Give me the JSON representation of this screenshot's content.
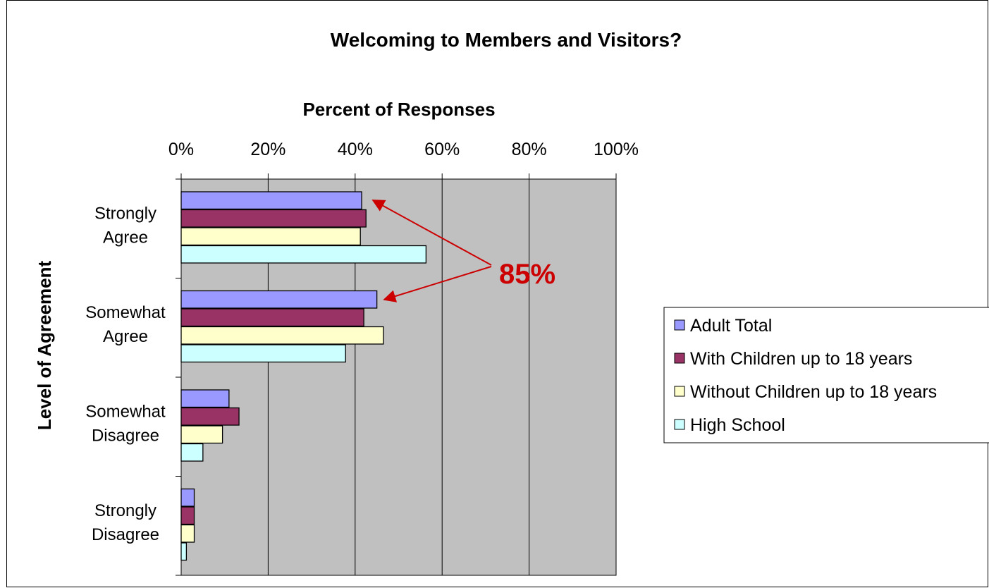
{
  "chart_data": {
    "type": "bar",
    "orientation": "horizontal",
    "title": "Welcoming to Members and Visitors?",
    "xlabel": "Percent of Responses",
    "ylabel": "Level of Agreement",
    "xlim": [
      0,
      100
    ],
    "x_ticks": [
      "0%",
      "20%",
      "40%",
      "60%",
      "80%",
      "100%"
    ],
    "categories": [
      [
        "Strongly",
        "Agree"
      ],
      [
        "Somewhat",
        "Agree"
      ],
      [
        "Somewhat",
        "Disagree"
      ],
      [
        "Strongly",
        "Disagree"
      ]
    ],
    "series": [
      {
        "name": "Adult Total",
        "color": "#9999ff",
        "values": [
          41.5,
          45,
          11,
          3
        ]
      },
      {
        "name": "With Children up to 18 years",
        "color": "#993366",
        "values": [
          42.5,
          42,
          13.3,
          3
        ]
      },
      {
        "name": "Without Children up to 18 years",
        "color": "#ffffcc",
        "values": [
          41.2,
          46.5,
          9.5,
          3
        ]
      },
      {
        "name": "High School",
        "color": "#ccffff",
        "values": [
          56.3,
          37.8,
          5,
          1.2
        ]
      }
    ],
    "annotation": {
      "text": "85%",
      "color": "#cc0000"
    },
    "grid": true,
    "plot_background": "#c0c0c0",
    "legend_position": "right"
  }
}
